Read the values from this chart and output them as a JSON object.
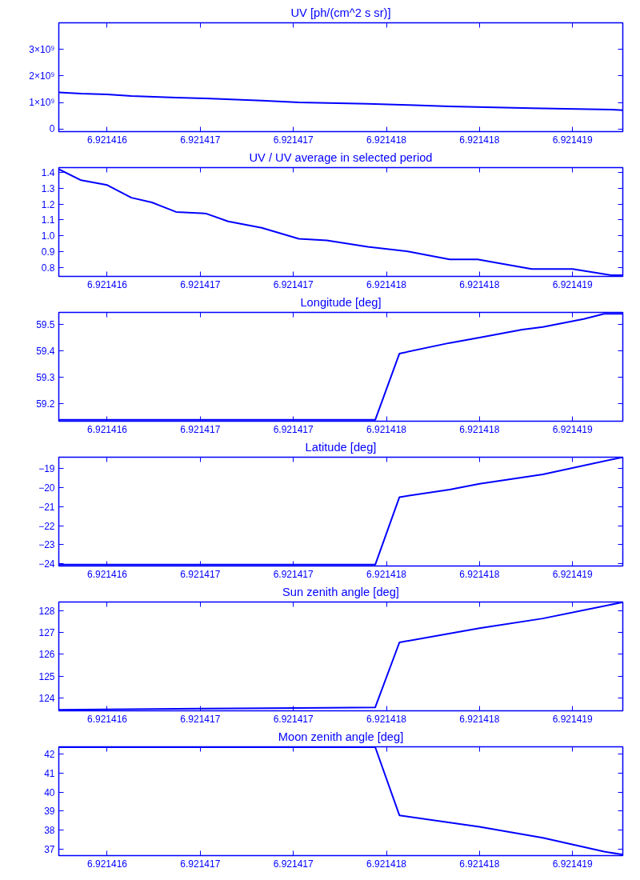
{
  "chart_data": [
    {
      "type": "line",
      "title": "UV [ph/(cm^2 s sr)]",
      "color": "#0000ff",
      "grid": false,
      "xlim": [
        6.92141574,
        6.92141877
      ],
      "ylim": [
        -100000000,
        4000000000
      ],
      "xticks": [
        {
          "value": 6.921416,
          "label": "6.921416"
        },
        {
          "value": 6.9214165,
          "label": "6.921417"
        },
        {
          "value": 6.921417,
          "label": "6.921417"
        },
        {
          "value": 6.9214175,
          "label": "6.921418"
        },
        {
          "value": 6.921418,
          "label": "6.921418"
        },
        {
          "value": 6.9214185,
          "label": "6.921419"
        }
      ],
      "yticks": [
        {
          "value": 0,
          "label": "0"
        },
        {
          "value": 1000000000,
          "label": "1×10⁹"
        },
        {
          "value": 2000000000,
          "label": "2×10⁹"
        },
        {
          "value": 3000000000,
          "label": "3×10⁹"
        }
      ],
      "x": [
        6.92141574,
        6.92141586,
        6.921416,
        6.92141613,
        6.92141637,
        6.92141653,
        6.92141683,
        6.92141703,
        6.9214174,
        6.92141762,
        6.92141784,
        6.92141828,
        6.92141871,
        6.92141877
      ],
      "values": [
        1380000000,
        1330000000,
        1300000000,
        1240000000,
        1180000000,
        1150000000,
        1070000000,
        1000000000,
        950000000,
        900000000,
        850000000,
        780000000,
        730000000,
        710000000
      ]
    },
    {
      "type": "line",
      "title": "UV / UV average in selected period",
      "color": "#0000ff",
      "grid": false,
      "xlim": [
        6.92141574,
        6.92141877
      ],
      "ylim": [
        0.743,
        1.43
      ],
      "xticks": [
        {
          "value": 6.921416,
          "label": "6.921416"
        },
        {
          "value": 6.9214165,
          "label": "6.921417"
        },
        {
          "value": 6.921417,
          "label": "6.921417"
        },
        {
          "value": 6.9214175,
          "label": "6.921418"
        },
        {
          "value": 6.921418,
          "label": "6.921418"
        },
        {
          "value": 6.9214185,
          "label": "6.921419"
        }
      ],
      "yticks": [
        {
          "value": 0.8,
          "label": "0.8"
        },
        {
          "value": 0.9,
          "label": "0.9"
        },
        {
          "value": 1.0,
          "label": "1.0"
        },
        {
          "value": 1.1,
          "label": "1.1"
        },
        {
          "value": 1.2,
          "label": "1.2"
        },
        {
          "value": 1.3,
          "label": "1.3"
        },
        {
          "value": 1.4,
          "label": "1.4"
        }
      ],
      "x": [
        6.92141574,
        6.92141586,
        6.921416,
        6.92141613,
        6.92141624,
        6.92141637,
        6.92141653,
        6.92141665,
        6.92141683,
        6.92141703,
        6.92141718,
        6.9214174,
        6.92141762,
        6.92141784,
        6.92141799,
        6.92141828,
        6.9214185,
        6.92141871,
        6.92141877
      ],
      "values": [
        1.42,
        1.35,
        1.32,
        1.24,
        1.21,
        1.15,
        1.14,
        1.09,
        1.05,
        0.98,
        0.97,
        0.93,
        0.9,
        0.85,
        0.85,
        0.79,
        0.79,
        0.75,
        0.75
      ]
    },
    {
      "type": "line",
      "title": "Longitude [deg]",
      "color": "#0000ff",
      "grid": false,
      "xlim": [
        6.92141574,
        6.92141877
      ],
      "ylim": [
        59.135,
        59.545
      ],
      "xticks": [
        {
          "value": 6.921416,
          "label": "6.921416"
        },
        {
          "value": 6.9214165,
          "label": "6.921417"
        },
        {
          "value": 6.921417,
          "label": "6.921417"
        },
        {
          "value": 6.9214175,
          "label": "6.921418"
        },
        {
          "value": 6.921418,
          "label": "6.921418"
        },
        {
          "value": 6.9214185,
          "label": "6.921419"
        }
      ],
      "yticks": [
        59.2,
        59.3,
        59.4,
        59.5
      ],
      "x": [
        6.92141574,
        6.92141744,
        6.92141757,
        6.92141784,
        6.921418,
        6.92141823,
        6.92141834,
        6.92141856,
        6.92141867,
        6.92141877
      ],
      "values": [
        59.14,
        59.14,
        59.39,
        59.43,
        59.45,
        59.48,
        59.49,
        59.52,
        59.54,
        59.54
      ]
    },
    {
      "type": "line",
      "title": "Latitude [deg]",
      "color": "#0000ff",
      "grid": false,
      "xlim": [
        6.92141574,
        6.92141877
      ],
      "ylim": [
        -24.12,
        -18.4
      ],
      "xticks": [
        {
          "value": 6.921416,
          "label": "6.921416"
        },
        {
          "value": 6.9214165,
          "label": "6.921417"
        },
        {
          "value": 6.921417,
          "label": "6.921417"
        },
        {
          "value": 6.9214175,
          "label": "6.921418"
        },
        {
          "value": 6.921418,
          "label": "6.921418"
        },
        {
          "value": 6.9214185,
          "label": "6.921419"
        }
      ],
      "yticks": [
        -24,
        -23,
        -22,
        -21,
        -20,
        -19
      ],
      "x": [
        6.92141574,
        6.92141744,
        6.92141757,
        6.92141784,
        6.921418,
        6.92141834,
        6.92141877
      ],
      "values": [
        -24.05,
        -24.05,
        -20.5,
        -20.1,
        -19.8,
        -19.3,
        -18.4
      ]
    },
    {
      "type": "line",
      "title": "Sun zenith angle [deg]",
      "color": "#0000ff",
      "grid": false,
      "xlim": [
        6.92141574,
        6.92141877
      ],
      "ylim": [
        123.4,
        128.41
      ],
      "xticks": [
        {
          "value": 6.921416,
          "label": "6.921416"
        },
        {
          "value": 6.9214165,
          "label": "6.921417"
        },
        {
          "value": 6.921417,
          "label": "6.921417"
        },
        {
          "value": 6.9214175,
          "label": "6.921418"
        },
        {
          "value": 6.921418,
          "label": "6.921418"
        },
        {
          "value": 6.9214185,
          "label": "6.921419"
        }
      ],
      "yticks": [
        124,
        125,
        126,
        127,
        128
      ],
      "x": [
        6.92141574,
        6.9214165,
        6.92141718,
        6.92141744,
        6.92141757,
        6.921418,
        6.92141834,
        6.92141877
      ],
      "values": [
        123.45,
        123.5,
        123.54,
        123.56,
        126.55,
        127.2,
        127.65,
        128.4
      ]
    },
    {
      "type": "line",
      "title": "Moon zenith angle [deg]",
      "color": "#0000ff",
      "grid": false,
      "xlim": [
        6.92141574,
        6.92141877
      ],
      "ylim": [
        36.66,
        42.39
      ],
      "xticks": [
        {
          "value": 6.921416,
          "label": "6.921416"
        },
        {
          "value": 6.9214165,
          "label": "6.921417"
        },
        {
          "value": 6.921417,
          "label": "6.921417"
        },
        {
          "value": 6.9214175,
          "label": "6.921418"
        },
        {
          "value": 6.921418,
          "label": "6.921418"
        },
        {
          "value": 6.9214185,
          "label": "6.921419"
        }
      ],
      "yticks": [
        37,
        38,
        39,
        40,
        41,
        42
      ],
      "x": [
        6.92141574,
        6.92141744,
        6.92141757,
        6.921418,
        6.92141834,
        6.92141867,
        6.92141877
      ],
      "values": [
        42.37,
        42.37,
        38.78,
        38.18,
        37.6,
        36.87,
        36.71
      ]
    }
  ]
}
